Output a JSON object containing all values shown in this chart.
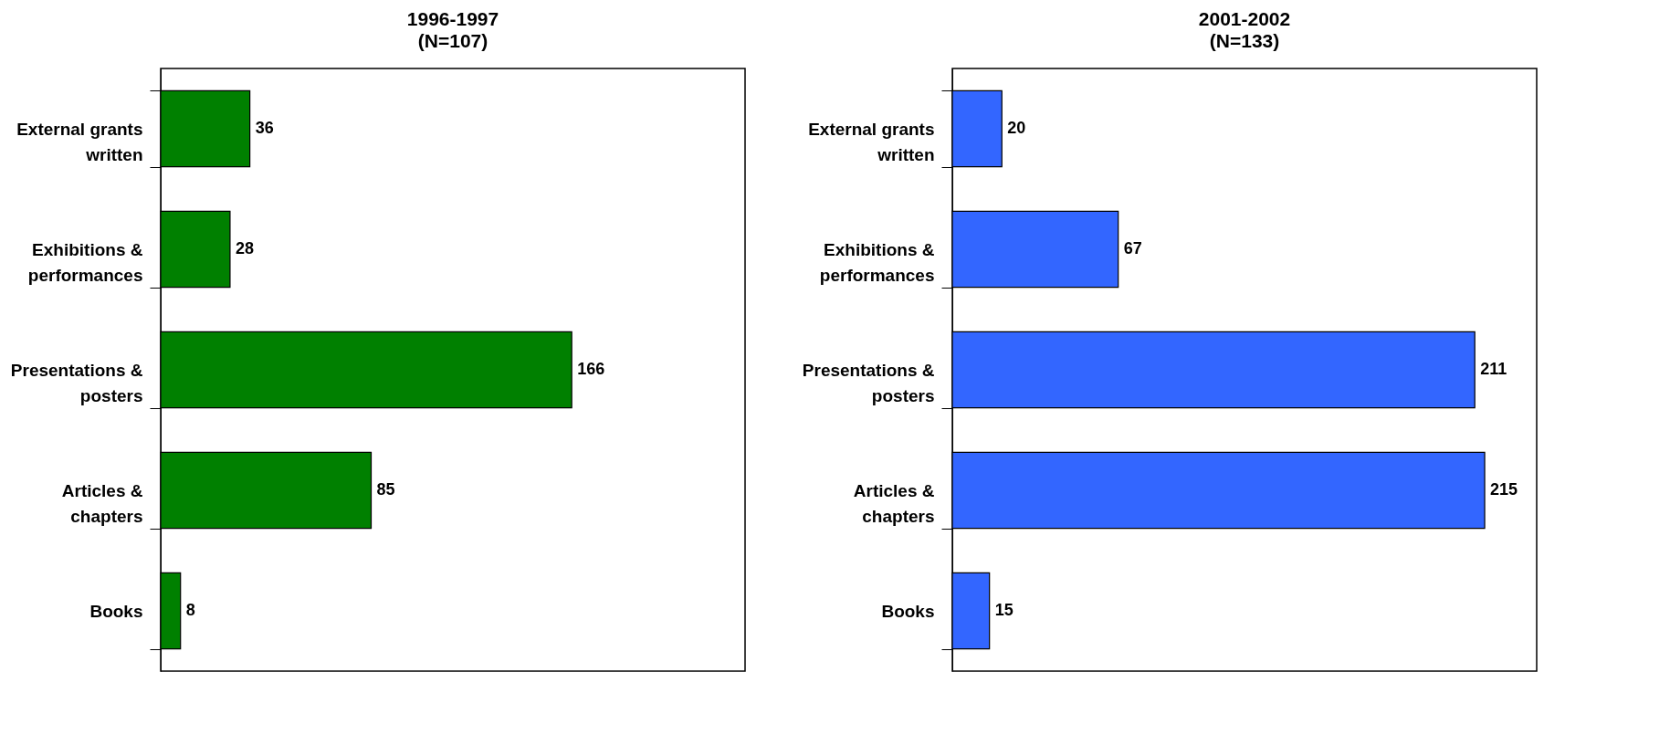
{
  "chart_data": [
    {
      "type": "bar",
      "orientation": "horizontal",
      "title": "1996-1997",
      "subtitle": "(N=107)",
      "categories": [
        "External grants written",
        "Exhibitions & performances",
        "Presentations & posters",
        "Articles & chapters",
        "Books"
      ],
      "values": [
        36,
        28,
        166,
        85,
        8
      ],
      "color": "#008000",
      "xlim": [
        0,
        236
      ],
      "data_labels": true,
      "tick_labels": "y"
    },
    {
      "type": "bar",
      "orientation": "horizontal",
      "title": "2001-2002",
      "subtitle": "(N=133)",
      "categories": [
        "External grants written",
        "Exhibitions & performances",
        "Presentations & posters",
        "Articles & chapters",
        "Books"
      ],
      "values": [
        20,
        67,
        211,
        215,
        15
      ],
      "color": "#3366ff",
      "xlim": [
        0,
        236
      ],
      "data_labels": true,
      "tick_labels": "y"
    }
  ]
}
